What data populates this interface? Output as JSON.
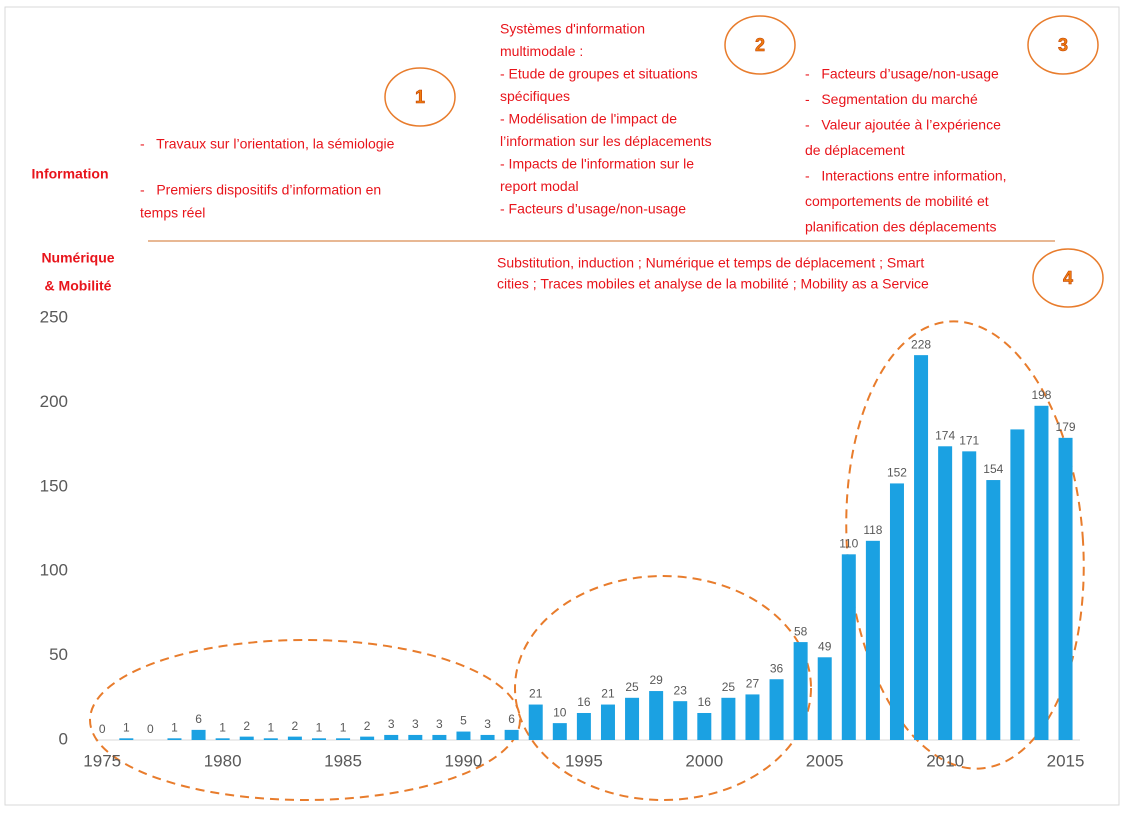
{
  "chart_data": {
    "type": "bar",
    "color": "#1ba1e2",
    "x": [
      1975,
      1976,
      1977,
      1978,
      1979,
      1980,
      1981,
      1982,
      1983,
      1984,
      1985,
      1986,
      1987,
      1988,
      1989,
      1990,
      1991,
      1992,
      1993,
      1994,
      1995,
      1996,
      1997,
      1998,
      1999,
      2000,
      2001,
      2002,
      2003,
      2004,
      2005,
      2006,
      2007,
      2008,
      2009,
      2010,
      2011,
      2012,
      2013,
      2014,
      2015
    ],
    "values": [
      0,
      1,
      0,
      1,
      6,
      1,
      2,
      1,
      2,
      1,
      1,
      2,
      3,
      3,
      3,
      5,
      3,
      6,
      21,
      10,
      16,
      21,
      25,
      29,
      23,
      16,
      25,
      27,
      36,
      58,
      49,
      110,
      118,
      152,
      228,
      174,
      171,
      154,
      184,
      198,
      179
    ],
    "value_labels": [
      "0",
      "1",
      "0",
      "1",
      "6",
      "1",
      "2",
      "1",
      "2",
      "1",
      "1",
      "2",
      "3",
      "3",
      "3",
      "5",
      "3",
      "6",
      "21",
      "10",
      "16",
      "21",
      "25",
      "29",
      "23",
      "16",
      "25",
      "27",
      "36",
      "58",
      "49",
      "110",
      "118",
      "152",
      "228",
      "174",
      "171",
      "154",
      null,
      "198",
      "179"
    ],
    "xlim": [
      1974.7,
      2015.6
    ],
    "xticks": [
      1975,
      1980,
      1985,
      1990,
      1995,
      2000,
      2005,
      2010,
      2015
    ],
    "ylim": [
      0,
      250
    ],
    "yticks": [
      0,
      50,
      100,
      150,
      200,
      250
    ],
    "grid": false,
    "row_labels": {
      "information": "Information",
      "numerique": [
        "Numérique",
        "& Mobilité"
      ]
    },
    "periods": [
      {
        "number": "1",
        "lines": [
          "-   Travaux sur l’orientation, la sémiologie",
          "",
          "-   Premiers dispositifs d’information en",
          "temps réel"
        ]
      },
      {
        "number": "2",
        "lines": [
          "Systèmes d'information",
          "multimodale :",
          "- Etude de groupes et situations",
          "spécifiques",
          "- Modélisation de l'impact de",
          "l’information sur les déplacements",
          "- Impacts de l'information sur le",
          "report modal",
          "- Facteurs d’usage/non-usage"
        ]
      },
      {
        "number": "3",
        "lines": [
          "-   Facteurs d’usage/non-usage",
          "-   Segmentation du marché",
          "-   Valeur ajoutée à l’expérience",
          "de déplacement",
          "-   Interactions entre information,",
          "comportements de mobilité et",
          "planification des déplacements"
        ]
      },
      {
        "number": "4",
        "lines": [
          "Substitution, induction ; Numérique et temps de déplacement ; Smart",
          "cities ; Traces mobiles et analyse de la mobilité ; Mobility as a Service"
        ]
      }
    ]
  }
}
